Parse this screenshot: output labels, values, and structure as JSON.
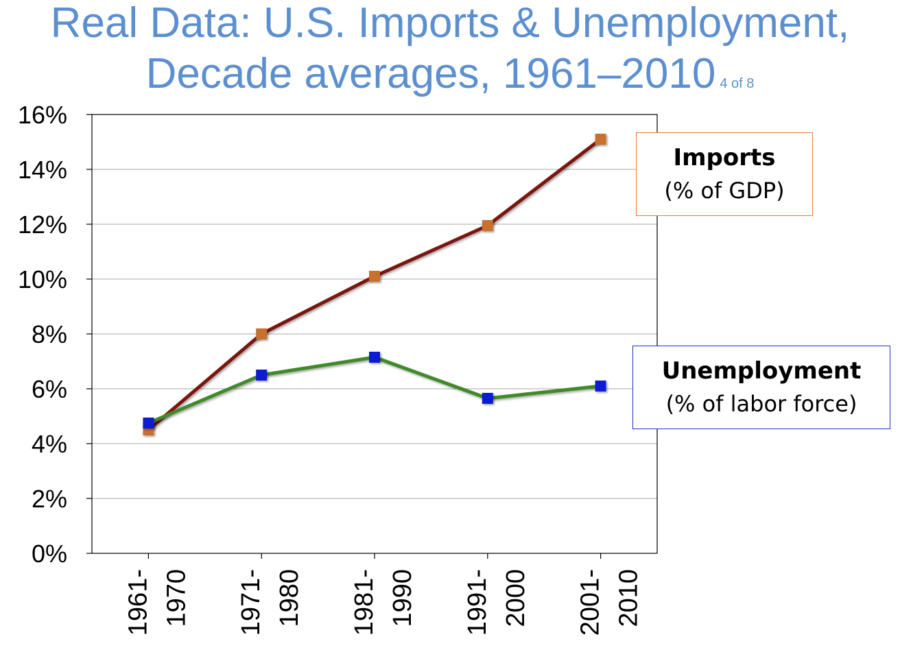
{
  "header": {
    "title_line1": "Real Data: U.S. Imports & Unemployment,",
    "title_line2": "Decade averages, 1961–2010",
    "slide_counter": "4 of 8"
  },
  "legend": {
    "imports": {
      "name": "Imports",
      "unit": "(% of GDP)"
    },
    "unemployment": {
      "name": "Unemployment",
      "unit": "(% of labor force)"
    }
  },
  "chart_data": {
    "type": "line",
    "title": "Real Data: U.S. Imports & Unemployment, Decade averages, 1961–2010",
    "categories": [
      [
        "1961-",
        "1970"
      ],
      [
        "1971-",
        "1980"
      ],
      [
        "1981-",
        "1990"
      ],
      [
        "1991-",
        "2000"
      ],
      [
        "2001-",
        "2010"
      ]
    ],
    "y_ticks": [
      "0%",
      "2%",
      "4%",
      "6%",
      "8%",
      "10%",
      "12%",
      "14%",
      "16%"
    ],
    "ylim": [
      0,
      16
    ],
    "grid": true,
    "series": [
      {
        "name": "Imports",
        "values": [
          4.5,
          8.0,
          10.1,
          11.95,
          15.1
        ],
        "line_color": "#7a1410",
        "marker_color": "#c8702f"
      },
      {
        "name": "Unemployment",
        "values": [
          4.75,
          6.5,
          7.15,
          5.65,
          6.1
        ],
        "line_color": "#3f8a2a",
        "marker_color": "#0a1fd0"
      }
    ]
  }
}
